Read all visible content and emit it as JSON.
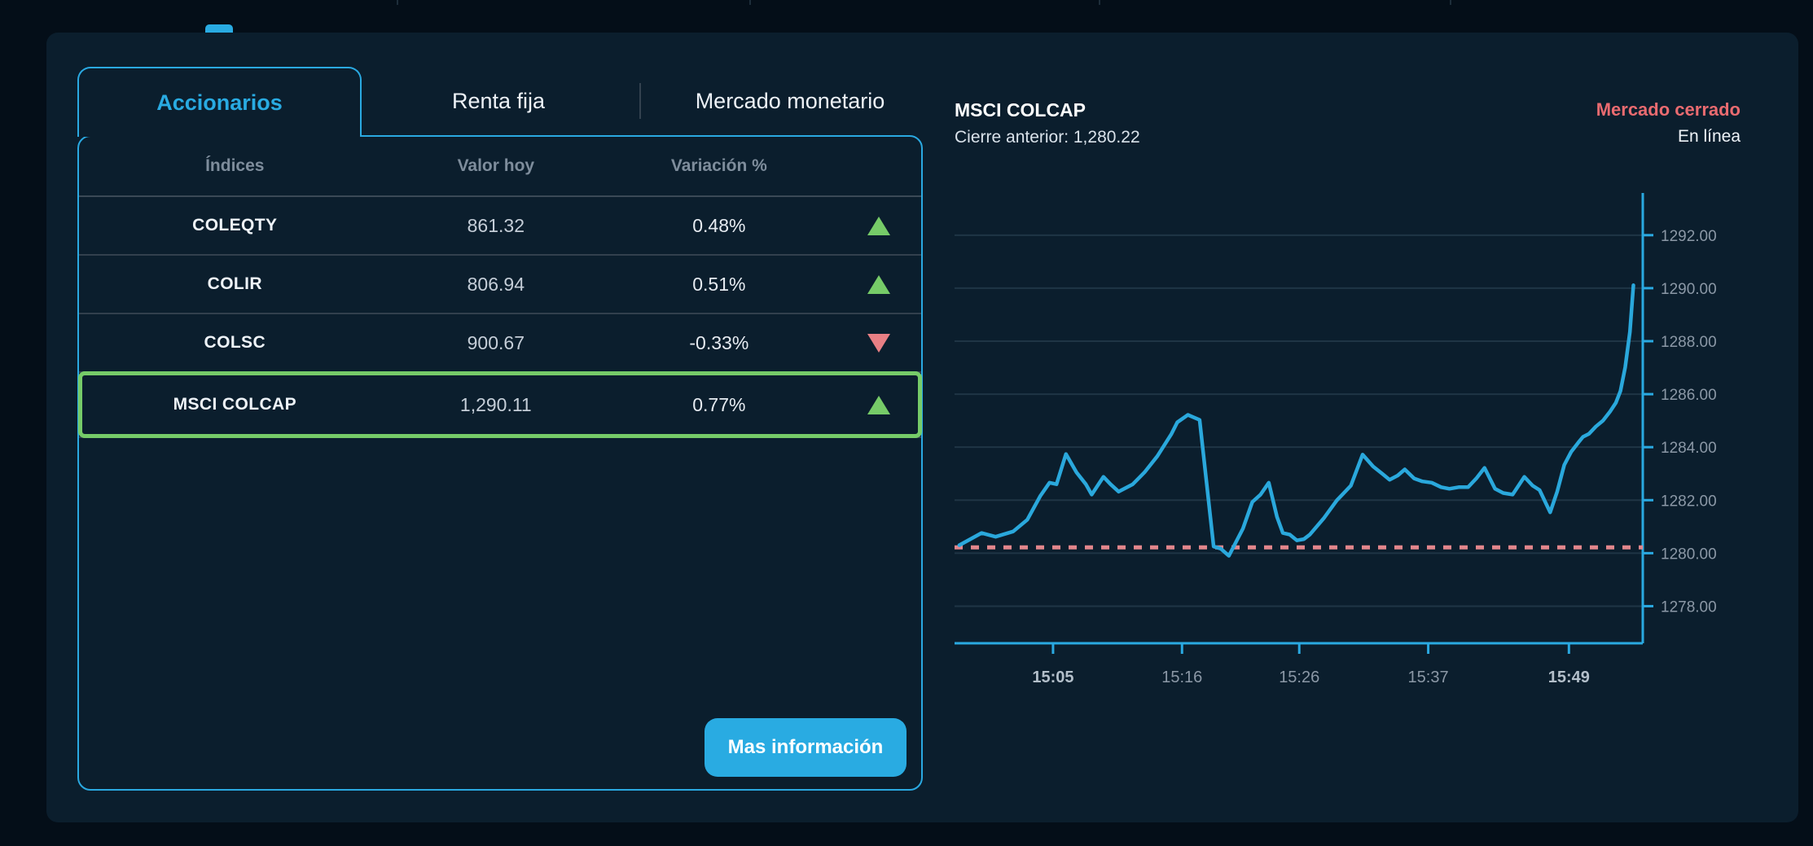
{
  "window": {
    "background": "#040e18",
    "panel_background": "#0b1e2d",
    "accent": "#29abe2"
  },
  "tabs": [
    {
      "label": "Accionarios",
      "active": true
    },
    {
      "label": "Renta fija",
      "active": false
    },
    {
      "label": "Mercado monetario",
      "active": false
    }
  ],
  "table": {
    "headers": [
      "Índices",
      "Valor hoy",
      "Variación %"
    ],
    "rows": [
      {
        "name": "COLEQTY",
        "value": "861.32",
        "change": "0.48%",
        "direction": "up",
        "selected": false
      },
      {
        "name": "COLIR",
        "value": "806.94",
        "change": "0.51%",
        "direction": "up",
        "selected": false
      },
      {
        "name": "COLSC",
        "value": "900.67",
        "change": "-0.33%",
        "direction": "down",
        "selected": false
      },
      {
        "name": "MSCI COLCAP",
        "value": "1,290.11",
        "change": "0.77%",
        "direction": "up",
        "selected": true
      }
    ]
  },
  "actions": {
    "more_info_label": "Mas información"
  },
  "chart_header": {
    "title": "MSCI COLCAP",
    "previous_close_label": "Cierre anterior: 1,280.22",
    "market_status": "Mercado cerrado",
    "mode": "En línea"
  },
  "colors": {
    "up_green": "#76cb68",
    "down_red": "#e87f84",
    "selected_border": "#76cb68",
    "status_red": "#ea6b70",
    "line_blue": "#2aa8dc",
    "dashed_pink": "#e2868c",
    "axis_cyan": "#2aa9e1",
    "grid": "#1f3545",
    "tick_label": "#8b98a6",
    "tick_label_strong": "#b3bfca"
  },
  "chart_data": {
    "type": "line",
    "title": "MSCI COLCAP",
    "xlim": [
      -3.4,
      55.3
    ],
    "ylim": [
      1276.6,
      1293.5
    ],
    "x_unit": "minutes since 15:00",
    "y_ticks": [
      1292,
      1290,
      1288,
      1286,
      1284,
      1282,
      1280,
      1278
    ],
    "y_tick_labels": [
      "1292.00",
      "1290.00",
      "1288.00",
      "1286.00",
      "1284.00",
      "1282.00",
      "1280.00",
      "1278.00"
    ],
    "x_ticks": [
      {
        "t": 5,
        "label": "15:05",
        "emphasis": true
      },
      {
        "t": 16,
        "label": "15:16",
        "emphasis": false
      },
      {
        "t": 26,
        "label": "15:26",
        "emphasis": false
      },
      {
        "t": 37,
        "label": "15:37",
        "emphasis": false
      },
      {
        "t": 49,
        "label": "15:49",
        "emphasis": true
      }
    ],
    "previous_close": 1280.22,
    "grid": true,
    "legend": "none",
    "series": [
      {
        "name": "MSCI COLCAP",
        "points": [
          [
            -3.0,
            1280.3
          ],
          [
            -1.1,
            1280.76
          ],
          [
            0.1,
            1280.62
          ],
          [
            1.6,
            1280.82
          ],
          [
            2.8,
            1281.26
          ],
          [
            3.9,
            1282.15
          ],
          [
            4.7,
            1282.66
          ],
          [
            5.3,
            1282.6
          ],
          [
            6.1,
            1283.74
          ],
          [
            7.0,
            1283.05
          ],
          [
            7.8,
            1282.6
          ],
          [
            8.3,
            1282.21
          ],
          [
            9.3,
            1282.88
          ],
          [
            9.9,
            1282.6
          ],
          [
            10.6,
            1282.32
          ],
          [
            11.8,
            1282.6
          ],
          [
            12.8,
            1283.05
          ],
          [
            13.9,
            1283.66
          ],
          [
            15.1,
            1284.5
          ],
          [
            15.6,
            1284.94
          ],
          [
            16.5,
            1285.22
          ],
          [
            17.5,
            1285.03
          ],
          [
            18.7,
            1280.25
          ],
          [
            19.3,
            1280.17
          ],
          [
            20.0,
            1279.9
          ],
          [
            21.2,
            1280.93
          ],
          [
            22.0,
            1281.93
          ],
          [
            22.7,
            1282.21
          ],
          [
            23.4,
            1282.66
          ],
          [
            24.1,
            1281.37
          ],
          [
            24.6,
            1280.76
          ],
          [
            25.2,
            1280.7
          ],
          [
            25.8,
            1280.48
          ],
          [
            26.4,
            1280.53
          ],
          [
            26.9,
            1280.7
          ],
          [
            28.1,
            1281.32
          ],
          [
            29.2,
            1281.99
          ],
          [
            30.4,
            1282.55
          ],
          [
            31.4,
            1283.72
          ],
          [
            32.3,
            1283.27
          ],
          [
            33.1,
            1282.99
          ],
          [
            33.7,
            1282.77
          ],
          [
            34.4,
            1282.93
          ],
          [
            35.0,
            1283.16
          ],
          [
            35.8,
            1282.82
          ],
          [
            36.5,
            1282.71
          ],
          [
            37.3,
            1282.66
          ],
          [
            38.1,
            1282.49
          ],
          [
            38.8,
            1282.43
          ],
          [
            39.6,
            1282.49
          ],
          [
            40.4,
            1282.49
          ],
          [
            41.1,
            1282.82
          ],
          [
            41.8,
            1283.22
          ],
          [
            42.7,
            1282.43
          ],
          [
            43.4,
            1282.27
          ],
          [
            44.2,
            1282.21
          ],
          [
            45.2,
            1282.88
          ],
          [
            45.9,
            1282.55
          ],
          [
            46.5,
            1282.38
          ],
          [
            47.4,
            1281.54
          ],
          [
            48.0,
            1282.32
          ],
          [
            48.6,
            1283.33
          ],
          [
            49.2,
            1283.83
          ],
          [
            49.8,
            1284.17
          ],
          [
            50.2,
            1284.39
          ],
          [
            50.7,
            1284.5
          ],
          [
            51.3,
            1284.78
          ],
          [
            51.9,
            1285.0
          ],
          [
            52.5,
            1285.34
          ],
          [
            53.0,
            1285.67
          ],
          [
            53.4,
            1286.12
          ],
          [
            53.8,
            1287.01
          ],
          [
            54.2,
            1288.35
          ],
          [
            54.5,
            1290.11
          ]
        ]
      }
    ]
  }
}
